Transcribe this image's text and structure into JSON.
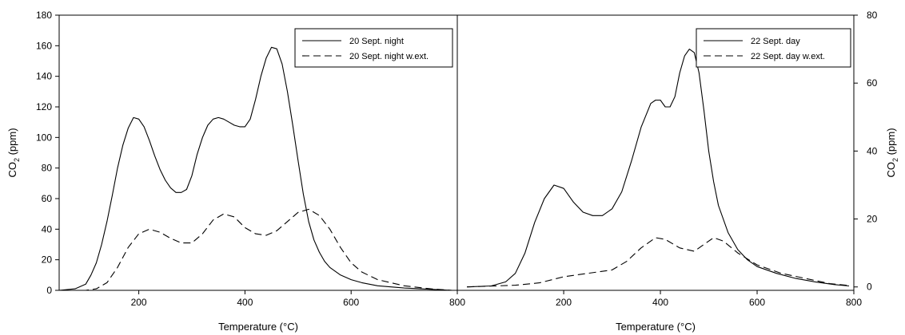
{
  "chart_data": [
    {
      "type": "line",
      "xlabel": "Temperature (°C)",
      "ylabel": "CO2 (ppm)",
      "ylabel_main": "CO",
      "ylabel_sub": "2",
      "ylabel_rest": " (ppm)",
      "xlim": [
        50,
        800
      ],
      "ylim": [
        0,
        180
      ],
      "x_ticks": [
        200,
        400,
        600,
        800
      ],
      "y_ticks": [
        0,
        20,
        40,
        60,
        80,
        100,
        120,
        140,
        160,
        180
      ],
      "y_axis_side": "left",
      "legend": "top-right",
      "grid": false,
      "series": [
        {
          "name": "20 Sept. night",
          "style": "solid",
          "x": [
            50,
            80,
            100,
            110,
            120,
            130,
            140,
            150,
            160,
            170,
            180,
            190,
            200,
            210,
            220,
            230,
            240,
            250,
            260,
            270,
            280,
            290,
            300,
            310,
            320,
            330,
            340,
            350,
            360,
            370,
            380,
            390,
            400,
            410,
            420,
            430,
            440,
            450,
            460,
            470,
            480,
            490,
            500,
            510,
            520,
            530,
            540,
            550,
            560,
            580,
            600,
            620,
            650,
            700,
            750,
            790
          ],
          "y": [
            0,
            1,
            4,
            10,
            18,
            30,
            45,
            62,
            80,
            95,
            106,
            113,
            112,
            107,
            98,
            88,
            79,
            72,
            67,
            64,
            64,
            66,
            75,
            89,
            100,
            108,
            112,
            113,
            112,
            110,
            108,
            107,
            107,
            112,
            125,
            140,
            152,
            159,
            158,
            148,
            130,
            108,
            85,
            63,
            45,
            33,
            25,
            19,
            15,
            10,
            7,
            5,
            3,
            1.5,
            0.7,
            0
          ]
        },
        {
          "name": "20 Sept. night w.ext.",
          "style": "dashed",
          "x": [
            50,
            100,
            120,
            140,
            160,
            180,
            200,
            220,
            240,
            260,
            280,
            300,
            320,
            340,
            360,
            380,
            400,
            420,
            440,
            460,
            480,
            500,
            520,
            540,
            560,
            580,
            600,
            620,
            650,
            700,
            750,
            790
          ],
          "y": [
            0,
            0,
            1,
            5,
            15,
            28,
            37,
            40,
            38,
            34,
            31,
            31,
            37,
            46,
            50,
            48,
            41,
            37,
            36,
            39,
            45,
            51,
            53,
            49,
            40,
            28,
            18,
            12,
            7,
            3,
            1,
            0
          ]
        }
      ]
    },
    {
      "type": "line",
      "xlabel": "Temperature (°C)",
      "ylabel": "CO2 (ppm)",
      "ylabel_main": "CO",
      "ylabel_sub": "2",
      "ylabel_rest": " (ppm)",
      "xlim": [
        -20,
        800
      ],
      "ylim": [
        -1,
        80
      ],
      "x_ticks": [
        200,
        400,
        600,
        800
      ],
      "y_ticks": [
        0,
        20,
        40,
        60,
        80
      ],
      "y_axis_side": "right",
      "legend": "top-right",
      "grid": false,
      "series": [
        {
          "name": "22 Sept. day",
          "style": "solid",
          "x": [
            0,
            50,
            80,
            100,
            120,
            140,
            160,
            180,
            200,
            220,
            240,
            260,
            280,
            300,
            320,
            340,
            360,
            380,
            390,
            400,
            410,
            420,
            430,
            440,
            450,
            460,
            470,
            480,
            490,
            500,
            510,
            520,
            540,
            560,
            580,
            600,
            640,
            680,
            720,
            760,
            790
          ],
          "y": [
            0,
            0.3,
            1.5,
            4,
            10,
            19,
            26,
            30,
            29,
            25,
            22,
            21,
            21,
            23,
            28,
            37,
            47,
            54,
            55,
            55,
            53,
            53,
            56,
            63,
            68,
            70,
            69,
            63,
            52,
            40,
            31,
            24,
            16,
            11,
            8,
            6,
            4,
            2.5,
            1.5,
            0.7,
            0.3
          ]
        },
        {
          "name": "22 Sept. day w.ext.",
          "style": "dashed",
          "x": [
            0,
            100,
            150,
            200,
            250,
            300,
            330,
            360,
            390,
            410,
            440,
            470,
            490,
            510,
            530,
            560,
            600,
            650,
            700,
            750,
            790
          ],
          "y": [
            0,
            0.5,
            1.2,
            3,
            4,
            5,
            7.5,
            11.5,
            14.5,
            14,
            11.5,
            10.5,
            12.5,
            14.5,
            13.5,
            10,
            6.5,
            4,
            2.5,
            1,
            0.4
          ]
        }
      ]
    }
  ]
}
